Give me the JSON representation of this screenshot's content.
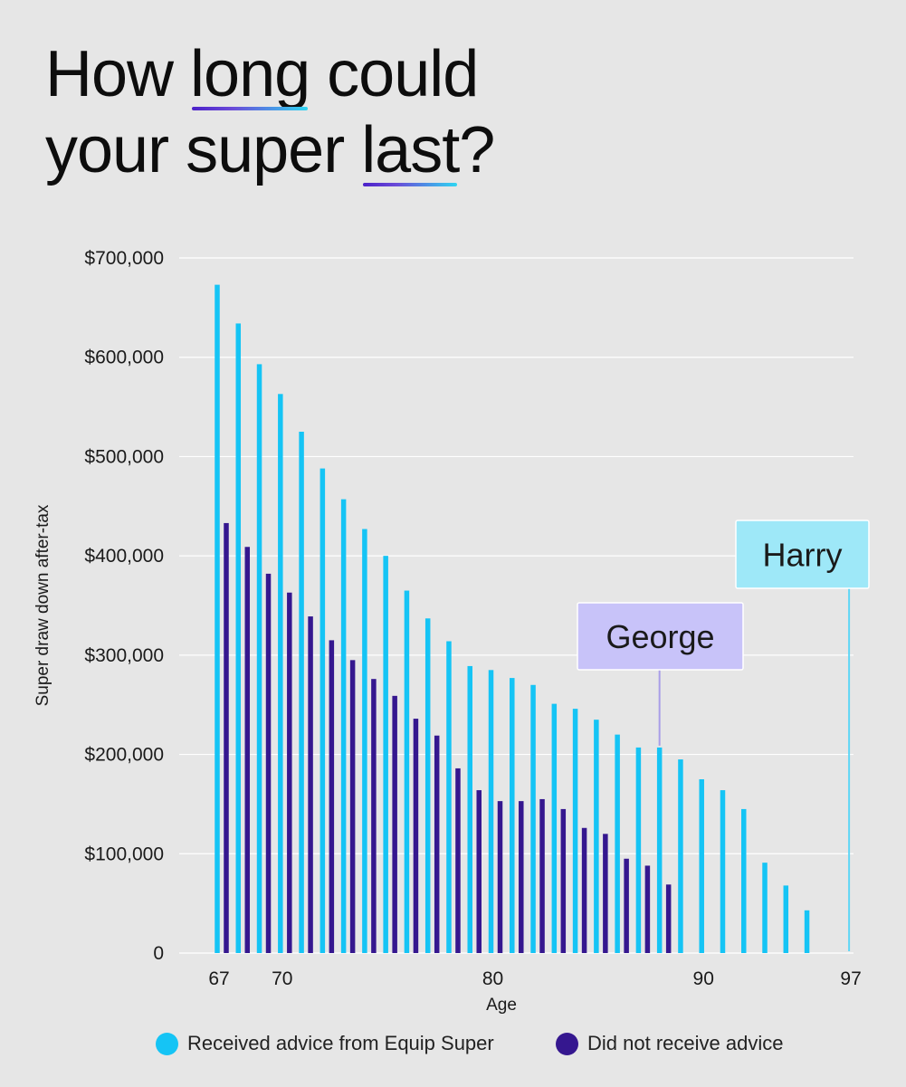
{
  "title": {
    "line1_pre": "How ",
    "line1_ul": "long",
    "line1_post": " could",
    "line2_pre": "your super ",
    "line2_ul": "last",
    "line2_post": "?"
  },
  "colors": {
    "advice": "#15c4f5",
    "no_advice": "#35178f",
    "george_label_bg": "#c8c3f9",
    "george_line": "#a99ee8",
    "harry_label_bg": "#9ee8f8",
    "harry_line": "#60d6f5",
    "grid": "#ffffff",
    "background": "#e6e6e6"
  },
  "legend": [
    {
      "label": "Received advice from Equip Super",
      "color": "#15c4f5"
    },
    {
      "label": "Did not receive advice",
      "color": "#35178f"
    }
  ],
  "annotations": [
    {
      "text": "George",
      "age": 88
    },
    {
      "text": "Harry",
      "age": 97
    }
  ],
  "chart_data": {
    "type": "bar",
    "xlabel": "Age",
    "ylabel": "Super draw down after-tax",
    "ylim": [
      0,
      700000
    ],
    "y_ticks": [
      0,
      100000,
      200000,
      300000,
      400000,
      500000,
      600000,
      700000
    ],
    "y_tick_labels": [
      "0",
      "$100,000",
      "$200,000",
      "$300,000",
      "$400,000",
      "$500,000",
      "$600,000",
      "$700,000"
    ],
    "x_tick_ages": [
      67,
      70,
      80,
      90,
      97
    ],
    "x_tick_labels": [
      "67",
      "70",
      "80",
      "90",
      "97"
    ],
    "grid": true,
    "categories": [
      67,
      68,
      69,
      70,
      71,
      72,
      73,
      74,
      75,
      76,
      77,
      78,
      79,
      80,
      81,
      82,
      83,
      84,
      85,
      86,
      87,
      88,
      89,
      90,
      91,
      92,
      93,
      94,
      95,
      96,
      97
    ],
    "series": [
      {
        "name": "Received advice from Equip Super",
        "values": [
          673000,
          634000,
          593000,
          563000,
          525000,
          488000,
          457000,
          427000,
          400000,
          365000,
          337000,
          314000,
          289000,
          285000,
          277000,
          270000,
          251000,
          246000,
          235000,
          220000,
          207000,
          207000,
          195000,
          175000,
          164000,
          145000,
          91000,
          68000,
          43000,
          null,
          null
        ]
      },
      {
        "name": "Did not receive advice",
        "values": [
          433000,
          409000,
          382000,
          363000,
          339000,
          315000,
          295000,
          276000,
          259000,
          236000,
          219000,
          186000,
          164000,
          153000,
          153000,
          155000,
          145000,
          126000,
          120000,
          95000,
          88000,
          69000,
          null,
          null,
          null,
          null,
          null,
          null,
          null,
          null,
          null
        ]
      }
    ]
  }
}
